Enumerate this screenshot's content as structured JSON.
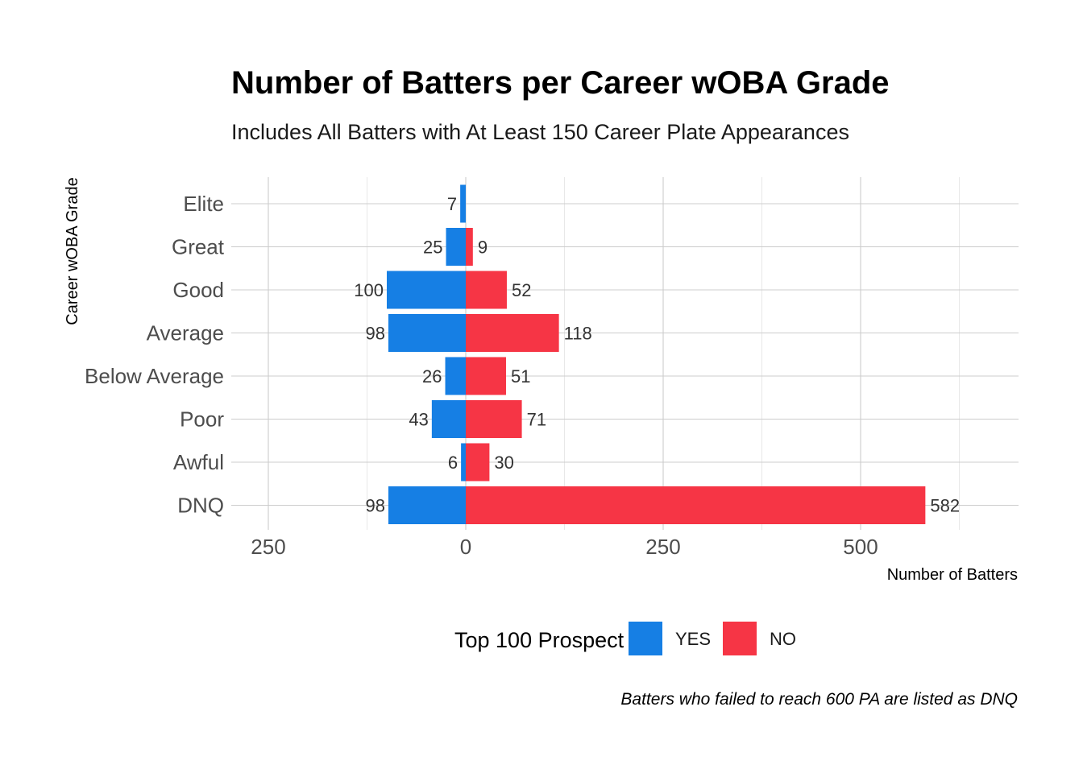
{
  "chart_data": {
    "type": "bar",
    "orientation": "horizontal",
    "layout": "diverging",
    "title": "Number of Batters per Career wOBA Grade",
    "subtitle": "Includes All Batters with At Least 150 Career Plate Appearances",
    "xlabel": "Number of Batters",
    "ylabel": "Career wOBA Grade",
    "caption": "Batters who failed to reach 600 PA are listed as DNQ",
    "categories": [
      "Elite",
      "Great",
      "Good",
      "Average",
      "Below Average",
      "Poor",
      "Awful",
      "DNQ"
    ],
    "series": [
      {
        "name": "YES",
        "values": [
          7,
          25,
          100,
          98,
          26,
          43,
          6,
          98
        ],
        "color": "#167fe4",
        "direction": "left"
      },
      {
        "name": "NO",
        "values": [
          0,
          9,
          52,
          118,
          51,
          71,
          30,
          582
        ],
        "color": "#f63545",
        "direction": "right"
      }
    ],
    "xlim": [
      -250,
      700
    ],
    "x_ticks": [
      {
        "value": -250,
        "label": "250"
      },
      {
        "value": 0,
        "label": "0"
      },
      {
        "value": 250,
        "label": "250"
      },
      {
        "value": 500,
        "label": "500"
      }
    ],
    "x_minor_ticks": [
      -125,
      125,
      375,
      625
    ],
    "grid": true,
    "legend": {
      "title": "Top 100 Prospect",
      "position": "bottom",
      "items": [
        {
          "label": "YES",
          "color": "#167fe4"
        },
        {
          "label": "NO",
          "color": "#f63545"
        }
      ]
    }
  }
}
